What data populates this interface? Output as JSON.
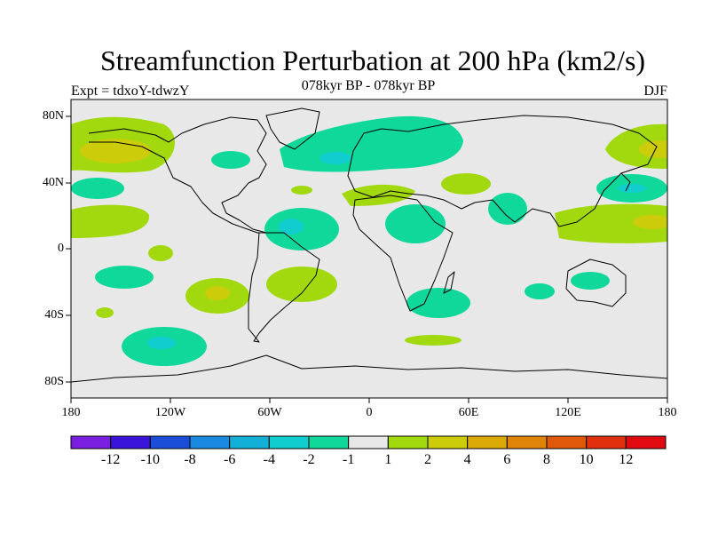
{
  "title": "Streamfunction Perturbation at 200 hPa (km2/s)",
  "subtitle": "078kyr BP - 078kyr BP",
  "left_label": "Expt = tdxoY-tdwzY",
  "right_label": "DJF",
  "y_ticks": [
    "80N",
    "40N",
    "0",
    "40S",
    "80S"
  ],
  "x_ticks": [
    "180",
    "120W",
    "60W",
    "0",
    "60E",
    "120E",
    "180"
  ],
  "colorbar": {
    "colors": [
      "#7a1ee0",
      "#3a14d8",
      "#1a4ed8",
      "#1a8ae0",
      "#12b0d6",
      "#12cdd0",
      "#10d89a",
      "#e8e8e8",
      "#a2d80e",
      "#cccc0a",
      "#dcaa06",
      "#e08408",
      "#e0580a",
      "#e0300e",
      "#e00a10"
    ],
    "labels": [
      "-12",
      "-10",
      "-8",
      "-6",
      "-4",
      "-2",
      "-1",
      "1",
      "2",
      "4",
      "6",
      "8",
      "10",
      "12"
    ]
  },
  "map": {
    "background": "#e8e8e8",
    "lon_range": [
      -180,
      180
    ],
    "lat_range": [
      -90,
      90
    ]
  }
}
